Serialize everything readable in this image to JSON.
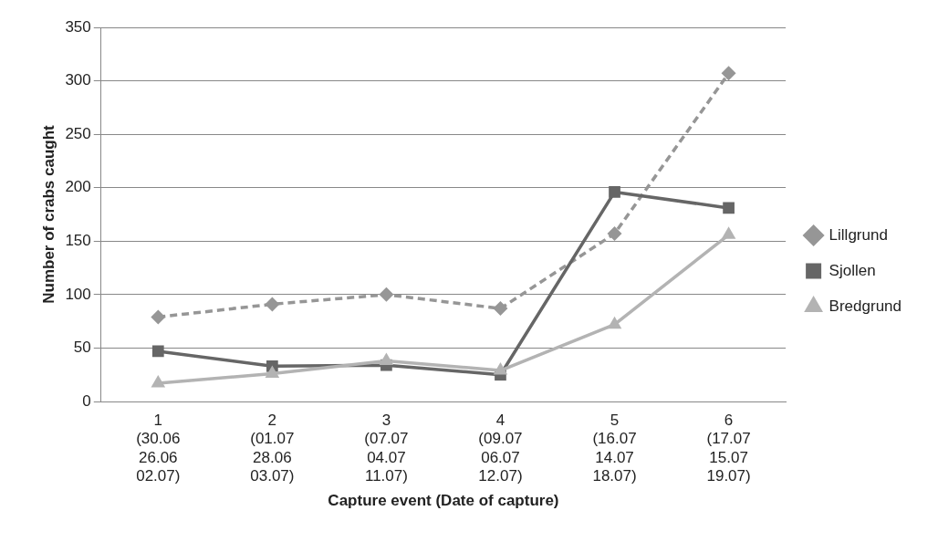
{
  "chart_data": {
    "type": "line",
    "xlabel": "Capture event (Date of capture)",
    "ylabel": "Number of crabs caught",
    "categories": [
      "1\n(30.06\n26.06\n02.07)",
      "2\n(01.07\n28.06\n03.07)",
      "3\n(07.07\n04.07\n11.07)",
      "4\n(09.07\n06.07\n12.07)",
      "5\n(16.07\n14.07\n18.07)",
      "6\n(17.07\n15.07\n19.07)"
    ],
    "series": [
      {
        "name": "Lillgrund",
        "color": "#969696",
        "marker": "diamond",
        "line_style": "dashed",
        "values": [
          79,
          91,
          100,
          87,
          157,
          307
        ]
      },
      {
        "name": "Sjollen",
        "color": "#666666",
        "marker": "square",
        "line_style": "solid",
        "values": [
          47,
          33,
          34,
          25,
          196,
          181
        ]
      },
      {
        "name": "Bredgrund",
        "color": "#b3b3b3",
        "marker": "triangle",
        "line_style": "solid",
        "values": [
          17,
          26,
          38,
          29,
          72,
          156
        ]
      }
    ],
    "ylim": [
      0,
      350
    ],
    "yticks": [
      0,
      50,
      100,
      150,
      200,
      250,
      300,
      350
    ],
    "grid": "y",
    "legend": "right"
  }
}
